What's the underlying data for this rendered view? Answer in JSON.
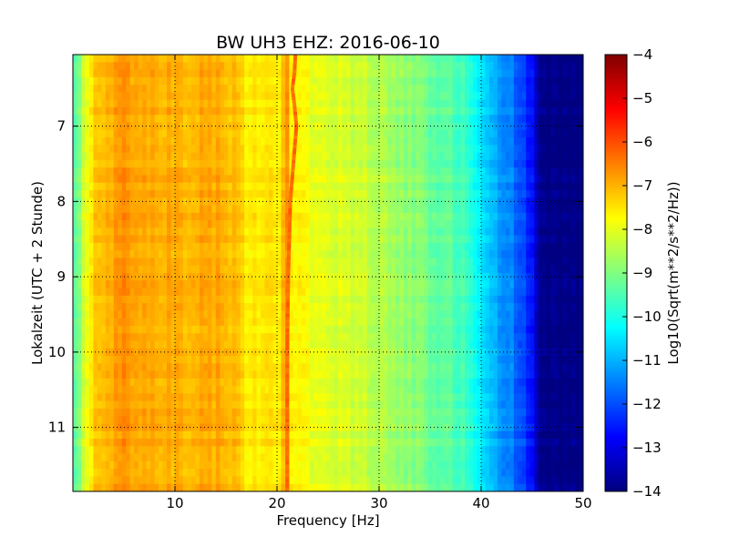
{
  "chart_data": {
    "type": "heatmap",
    "title": "BW UH3 EHZ: 2016-06-10",
    "xlabel": "Frequency [Hz]",
    "ylabel": "Lokalzeit (UTC + 2 Stunde)",
    "xlim": [
      0,
      50
    ],
    "ylim": [
      11.85,
      6.05
    ],
    "y_inverted": true,
    "x_ticks": [
      10,
      20,
      30,
      40,
      50
    ],
    "x_tick_labels": [
      "10",
      "20",
      "30",
      "40",
      "50"
    ],
    "y_ticks": [
      7,
      8,
      9,
      10,
      11
    ],
    "y_tick_labels": [
      "7",
      "8",
      "9",
      "10",
      "11"
    ],
    "grid": true,
    "colormap": "jet",
    "colorbar": {
      "label": "Log10(Sqrt(m**2/s**2/Hz))",
      "min": -14,
      "max": -4,
      "ticks": [
        -4,
        -5,
        -6,
        -7,
        -8,
        -9,
        -10,
        -11,
        -12,
        -13,
        -14
      ],
      "tick_labels": [
        "−4",
        "−5",
        "−6",
        "−7",
        "−8",
        "−9",
        "−10",
        "−11",
        "−12",
        "−13",
        "−14"
      ]
    },
    "spectrum_profile": {
      "frequency": [
        0,
        0.5,
        1,
        1.5,
        2,
        2.5,
        3,
        4,
        5,
        6,
        8,
        10,
        12,
        14,
        15,
        16,
        16.5,
        17,
        18,
        19,
        20,
        20.5,
        21,
        21.5,
        22,
        22.5,
        23,
        24,
        25,
        26,
        27,
        28,
        29,
        30,
        31,
        32,
        33,
        34,
        35,
        36,
        37,
        38,
        39,
        39.5,
        40,
        41,
        42,
        43,
        44,
        45,
        45.5,
        46,
        48,
        50
      ],
      "log10_amplitude": [
        -9.8,
        -9.0,
        -8.3,
        -7.8,
        -7.4,
        -7.1,
        -6.95,
        -6.85,
        -6.75,
        -6.85,
        -6.9,
        -6.95,
        -6.95,
        -6.95,
        -7.05,
        -7.2,
        -7.4,
        -7.5,
        -7.55,
        -7.6,
        -7.6,
        -7.4,
        -6.5,
        -7.4,
        -7.7,
        -7.8,
        -7.85,
        -7.9,
        -7.95,
        -8.1,
        -8.15,
        -8.2,
        -8.35,
        -8.5,
        -8.6,
        -8.7,
        -8.9,
        -9.0,
        -9.2,
        -9.3,
        -9.4,
        -9.55,
        -9.8,
        -10.2,
        -10.7,
        -10.9,
        -11.2,
        -11.5,
        -12.0,
        -12.6,
        -13.3,
        -14.0,
        -14.0,
        -14.0
      ]
    },
    "peak_line": {
      "time": [
        6.05,
        6.3,
        6.5,
        6.7,
        7.0,
        7.5,
        8.0,
        9.0,
        10.0,
        11.0,
        11.85
      ],
      "frequency": [
        21.8,
        21.7,
        21.5,
        21.7,
        21.9,
        21.6,
        21.3,
        21.1,
        21.0,
        21.0,
        21.0
      ]
    }
  }
}
